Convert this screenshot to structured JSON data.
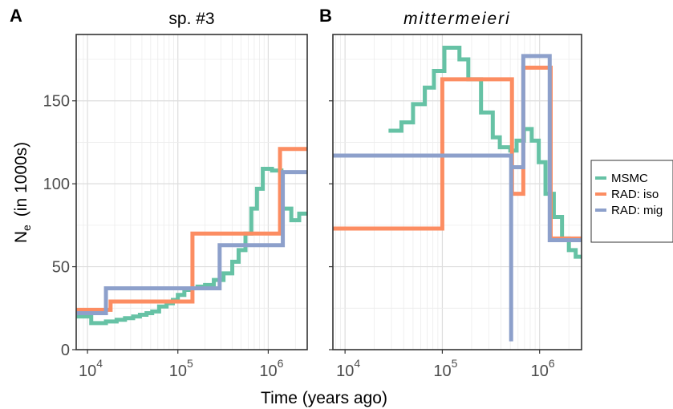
{
  "chart_data": {
    "type": "line",
    "xscale": "log",
    "xlim": [
      7500,
      2700000
    ],
    "ylim": [
      0,
      190
    ],
    "grid": true,
    "x_major_ticks": [
      10000,
      100000,
      1000000
    ],
    "x_tick_labels": [
      {
        "base": "10",
        "exp": "4"
      },
      {
        "base": "10",
        "exp": "5"
      },
      {
        "base": "10",
        "exp": "6"
      }
    ],
    "y_ticks": [
      0,
      50,
      100,
      150
    ],
    "y_tick_labels": [
      "0",
      "50",
      "100",
      "150"
    ],
    "xlabel": "Time (years ago)",
    "ylabel_main": "N",
    "ylabel_sub": "e",
    "ylabel_rest": "(in 1000s)",
    "legend_position": "right",
    "series_meta": [
      {
        "name": "MSMC",
        "color": "#66C2A5"
      },
      {
        "name": "RAD: iso",
        "color": "#FC8D62"
      },
      {
        "name": "RAD: mig",
        "color": "#8DA0CB"
      }
    ],
    "panels": [
      {
        "letter": "A",
        "title": "sp. #3",
        "title_italic": false,
        "series": [
          {
            "name": "MSMC",
            "points": [
              [
                7500,
                20
              ],
              [
                11000,
                20
              ],
              [
                11000,
                16
              ],
              [
                16000,
                16
              ],
              [
                16000,
                17
              ],
              [
                21000,
                17
              ],
              [
                21000,
                18
              ],
              [
                26000,
                18
              ],
              [
                26000,
                19
              ],
              [
                32000,
                19
              ],
              [
                32000,
                20
              ],
              [
                38000,
                20
              ],
              [
                38000,
                21
              ],
              [
                45000,
                21
              ],
              [
                45000,
                22
              ],
              [
                52000,
                22
              ],
              [
                52000,
                23
              ],
              [
                62000,
                23
              ],
              [
                62000,
                26
              ],
              [
                75000,
                26
              ],
              [
                75000,
                28
              ],
              [
                88000,
                28
              ],
              [
                88000,
                30
              ],
              [
                100000,
                30
              ],
              [
                100000,
                33
              ],
              [
                118000,
                33
              ],
              [
                118000,
                36
              ],
              [
                140000,
                36
              ],
              [
                140000,
                37
              ],
              [
                165000,
                37
              ],
              [
                165000,
                38
              ],
              [
                200000,
                38
              ],
              [
                200000,
                39
              ],
              [
                250000,
                39
              ],
              [
                250000,
                42
              ],
              [
                320000,
                42
              ],
              [
                320000,
                46
              ],
              [
                400000,
                46
              ],
              [
                400000,
                53
              ],
              [
                470000,
                53
              ],
              [
                470000,
                60
              ],
              [
                560000,
                60
              ],
              [
                560000,
                70
              ],
              [
                650000,
                70
              ],
              [
                650000,
                85
              ],
              [
                750000,
                85
              ],
              [
                750000,
                97
              ],
              [
                870000,
                97
              ],
              [
                870000,
                109
              ],
              [
                1100000,
                109
              ],
              [
                1100000,
                108
              ],
              [
                1400000,
                108
              ],
              [
                1400000,
                85
              ],
              [
                1800000,
                85
              ],
              [
                1800000,
                78
              ],
              [
                2200000,
                78
              ],
              [
                2200000,
                82
              ],
              [
                2700000,
                82
              ]
            ]
          },
          {
            "name": "RAD: iso",
            "points": [
              [
                7500,
                24
              ],
              [
                18000,
                24
              ],
              [
                18000,
                29
              ],
              [
                145000,
                29
              ],
              [
                145000,
                70
              ],
              [
                1350000,
                70
              ],
              [
                1350000,
                121
              ],
              [
                2700000,
                121
              ]
            ]
          },
          {
            "name": "RAD: mig",
            "points": [
              [
                7500,
                22
              ],
              [
                16000,
                22
              ],
              [
                16000,
                37
              ],
              [
                290000,
                37
              ],
              [
                290000,
                63
              ],
              [
                1450000,
                63
              ],
              [
                1450000,
                107
              ],
              [
                2700000,
                107
              ]
            ]
          }
        ]
      },
      {
        "letter": "B",
        "title": "mittermeieri",
        "title_italic": true,
        "series": [
          {
            "name": "MSMC",
            "points": [
              [
                28000,
                132
              ],
              [
                38000,
                132
              ],
              [
                38000,
                137
              ],
              [
                50000,
                137
              ],
              [
                50000,
                148
              ],
              [
                66000,
                148
              ],
              [
                66000,
                158
              ],
              [
                82000,
                158
              ],
              [
                82000,
                168
              ],
              [
                105000,
                168
              ],
              [
                105000,
                182
              ],
              [
                150000,
                182
              ],
              [
                150000,
                175
              ],
              [
                185000,
                175
              ],
              [
                185000,
                163
              ],
              [
                250000,
                163
              ],
              [
                250000,
                143
              ],
              [
                330000,
                143
              ],
              [
                330000,
                128
              ],
              [
                390000,
                128
              ],
              [
                390000,
                122
              ],
              [
                500000,
                122
              ],
              [
                500000,
                120
              ],
              [
                580000,
                120
              ],
              [
                580000,
                126
              ],
              [
                690000,
                126
              ],
              [
                690000,
                133
              ],
              [
                830000,
                133
              ],
              [
                830000,
                126
              ],
              [
                980000,
                126
              ],
              [
                980000,
                113
              ],
              [
                1150000,
                113
              ],
              [
                1150000,
                94
              ],
              [
                1400000,
                94
              ],
              [
                1400000,
                80
              ],
              [
                1700000,
                80
              ],
              [
                1700000,
                67
              ],
              [
                2000000,
                67
              ],
              [
                2000000,
                60
              ],
              [
                2350000,
                60
              ],
              [
                2350000,
                56
              ],
              [
                2700000,
                56
              ]
            ]
          },
          {
            "name": "RAD: iso",
            "points": [
              [
                7500,
                73
              ],
              [
                100000,
                73
              ],
              [
                100000,
                163
              ],
              [
                520000,
                163
              ],
              [
                520000,
                94
              ],
              [
                680000,
                94
              ],
              [
                680000,
                170
              ],
              [
                1300000,
                170
              ],
              [
                1300000,
                67
              ],
              [
                2700000,
                67
              ]
            ]
          },
          {
            "name": "RAD: mig",
            "points": [
              [
                7500,
                117
              ],
              [
                510000,
                117
              ],
              [
                510000,
                5
              ],
              [
                510000,
                110
              ],
              [
                680000,
                110
              ],
              [
                680000,
                177
              ],
              [
                1270000,
                177
              ],
              [
                1270000,
                66
              ],
              [
                2700000,
                66
              ]
            ]
          }
        ]
      }
    ]
  }
}
